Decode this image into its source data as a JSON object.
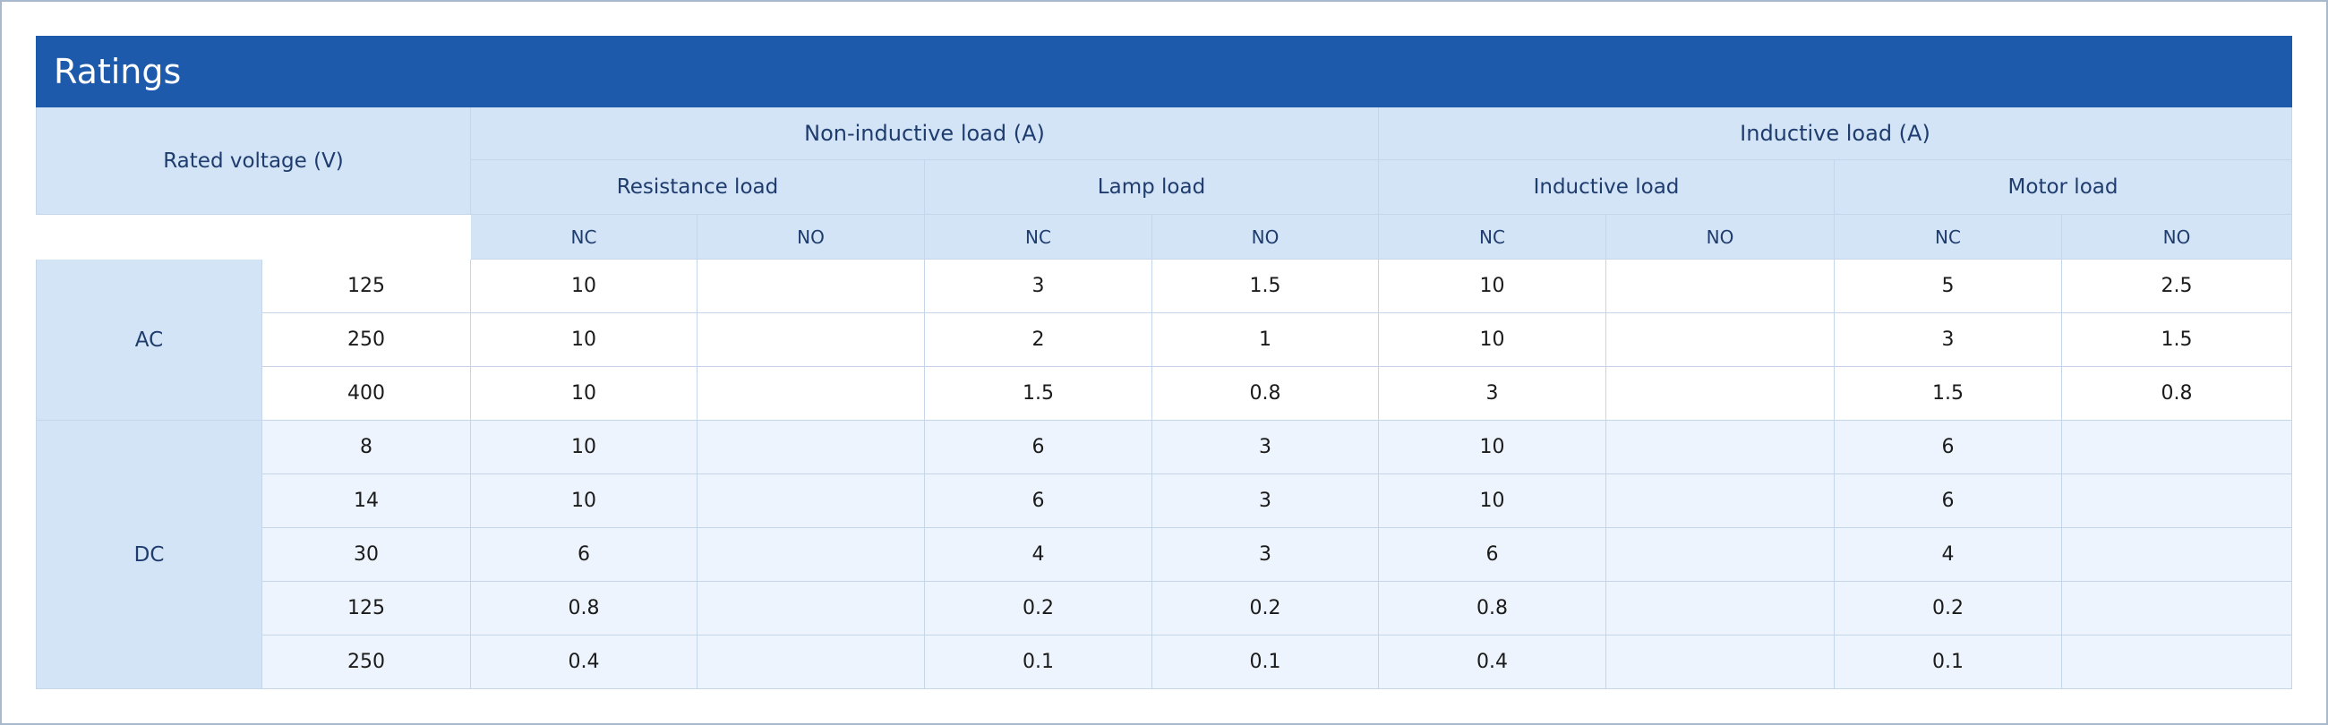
{
  "title": "Ratings",
  "header": {
    "rated_voltage": "Rated voltage (V)",
    "groups": [
      {
        "label": "Non-inductive load (A)",
        "subgroups": [
          {
            "label": "Resistance load",
            "columns": [
              "NC",
              "NO"
            ]
          },
          {
            "label": "Lamp load",
            "columns": [
              "NC",
              "NO"
            ]
          }
        ]
      },
      {
        "label": "Inductive load (A)",
        "subgroups": [
          {
            "label": "Inductive load",
            "columns": [
              "NC",
              "NO"
            ]
          },
          {
            "label": "Motor load",
            "columns": [
              "NC",
              "NO"
            ]
          }
        ]
      }
    ]
  },
  "sections": [
    {
      "label": "AC",
      "rows": [
        {
          "voltage": 125,
          "values": [
            10,
            null,
            3,
            1.5,
            10,
            null,
            5,
            2.5
          ]
        },
        {
          "voltage": 250,
          "values": [
            10,
            null,
            2,
            1,
            10,
            null,
            3,
            1.5
          ]
        },
        {
          "voltage": 400,
          "values": [
            10,
            null,
            1.5,
            0.8,
            3,
            null,
            1.5,
            0.8
          ]
        }
      ]
    },
    {
      "label": "DC",
      "rows": [
        {
          "voltage": 8,
          "values": [
            10,
            null,
            6,
            3,
            10,
            null,
            6,
            null
          ]
        },
        {
          "voltage": 14,
          "values": [
            10,
            null,
            6,
            3,
            10,
            null,
            6,
            null
          ]
        },
        {
          "voltage": 30,
          "values": [
            6,
            null,
            4,
            3,
            6,
            null,
            4,
            null
          ]
        },
        {
          "voltage": 125,
          "values": [
            0.8,
            null,
            0.2,
            0.2,
            0.8,
            null,
            0.2,
            null
          ]
        },
        {
          "voltage": 250,
          "values": [
            0.4,
            null,
            0.1,
            0.1,
            0.4,
            null,
            0.1,
            null
          ]
        }
      ]
    }
  ]
}
